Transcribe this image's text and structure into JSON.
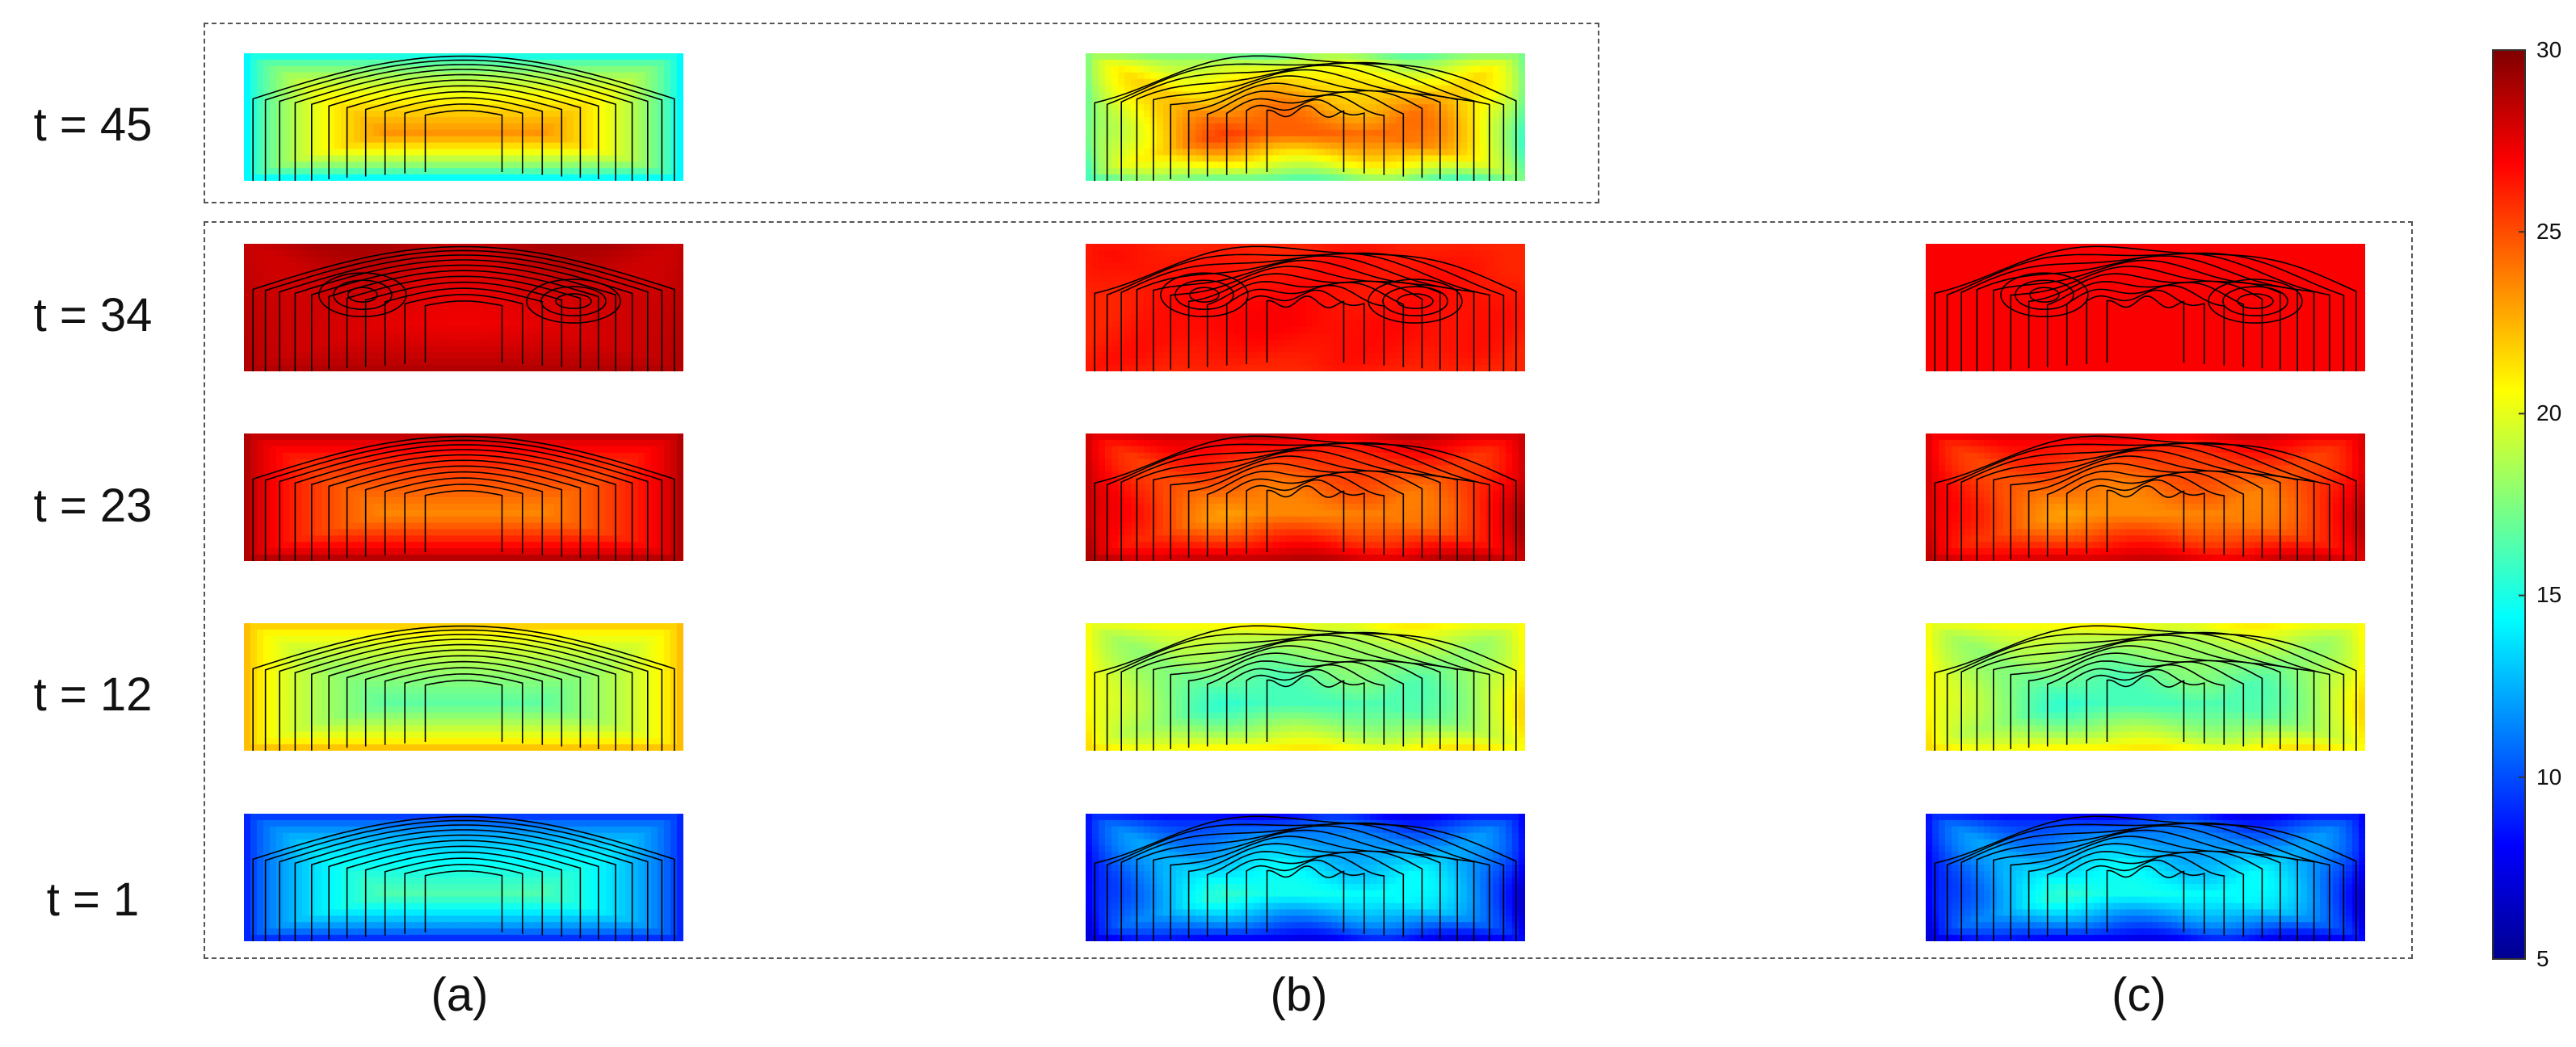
{
  "chart_data": {
    "type": "heatmap",
    "title": "",
    "xlabel": "",
    "ylabel": "",
    "rows": [
      "t = 45",
      "t = 34",
      "t = 23",
      "t = 12",
      "t = 1"
    ],
    "columns": [
      "(a)",
      "(b)",
      "(c)"
    ],
    "colorbar": {
      "colormap": "jet",
      "range": [
        5,
        30
      ],
      "ticks": [
        "5",
        "10",
        "15",
        "20",
        "25",
        "30"
      ]
    },
    "panels": [
      {
        "row": "t = 45",
        "column": "(a)",
        "edge": 13,
        "center": 26,
        "style": "smooth"
      },
      {
        "row": "t = 45",
        "column": "(b)",
        "edge": 16,
        "center": 27,
        "style": "wavy"
      },
      {
        "row": "t = 34",
        "column": "(a)",
        "edge": 29,
        "center": 27,
        "style": "two-cell"
      },
      {
        "row": "t = 34",
        "column": "(b)",
        "edge": 26,
        "center": 27,
        "style": "irregular"
      },
      {
        "row": "t = 34",
        "column": "(c)",
        "edge": 27,
        "center": 27,
        "style": "irregular"
      },
      {
        "row": "t = 23",
        "column": "(a)",
        "edge": 29.5,
        "center": 22,
        "style": "smooth"
      },
      {
        "row": "t = 23",
        "column": "(b)",
        "edge": 29,
        "center": 22,
        "style": "wavy"
      },
      {
        "row": "t = 23",
        "column": "(c)",
        "edge": 28.5,
        "center": 22,
        "style": "wavy"
      },
      {
        "row": "t = 12",
        "column": "(a)",
        "edge": 23,
        "center": 15,
        "style": "smooth"
      },
      {
        "row": "t = 12",
        "column": "(b)",
        "edge": 21.5,
        "center": 14.5,
        "style": "wavy"
      },
      {
        "row": "t = 12",
        "column": "(c)",
        "edge": 21.5,
        "center": 14.5,
        "style": "wavy"
      },
      {
        "row": "t = 1",
        "column": "(a)",
        "edge": 8,
        "center": 18.5,
        "style": "smooth"
      },
      {
        "row": "t = 1",
        "column": "(b)",
        "edge": 7,
        "center": 17,
        "style": "wavy"
      },
      {
        "row": "t = 1",
        "column": "(c)",
        "edge": 7,
        "center": 17,
        "style": "wavy"
      }
    ]
  }
}
